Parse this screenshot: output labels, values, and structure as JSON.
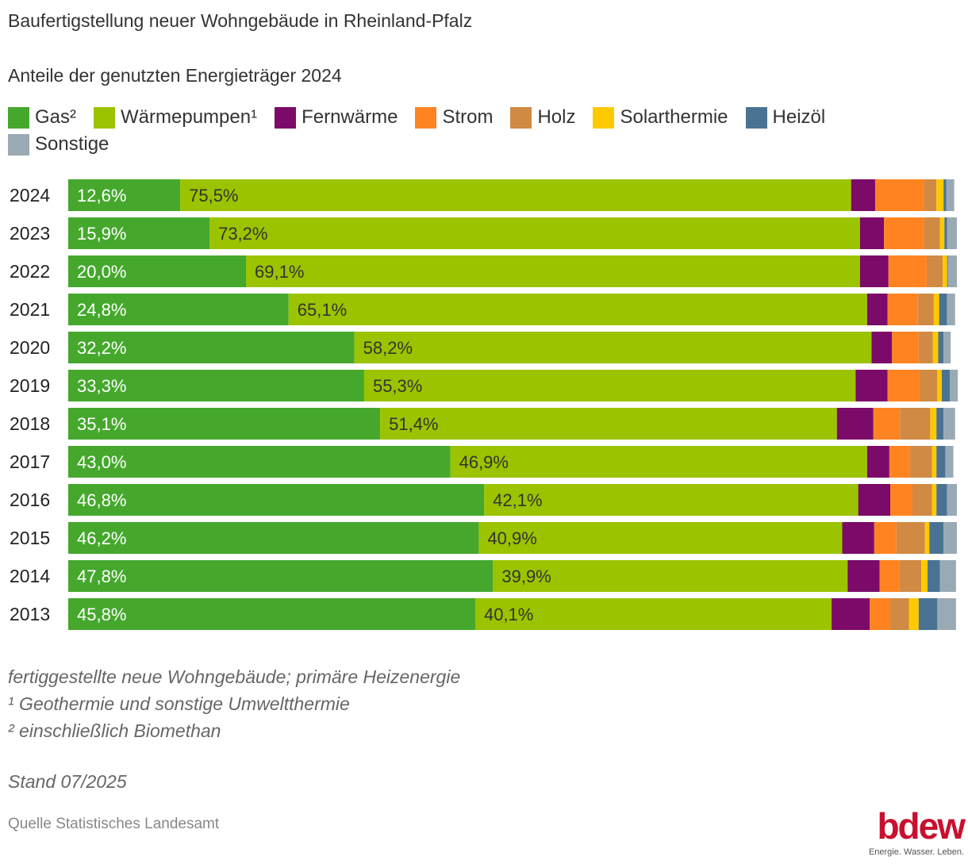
{
  "title": "Baufertigstellung neuer Wohngebäude in Rheinland-Pfalz",
  "subtitle": "Anteile der genutzten Energieträger 2024",
  "notes": [
    "fertiggestellte neue Wohngebäude; primäre Heizenergie",
    "¹ Geothermie und sonstige Umweltthermie",
    "² einschließlich Biomethan"
  ],
  "stand": "Stand 07/2025",
  "source": "Quelle Statistisches Landesamt",
  "logo": {
    "wordmark": "bdew",
    "claim": "Energie. Wasser. Leben."
  },
  "chart_data": {
    "type": "bar",
    "orientation": "horizontal",
    "stacked": true,
    "unit": "%",
    "xlim": [
      0,
      100
    ],
    "legend_position": "top",
    "categories": [
      "2024",
      "2023",
      "2022",
      "2021",
      "2020",
      "2019",
      "2018",
      "2017",
      "2016",
      "2015",
      "2014",
      "2013"
    ],
    "series": [
      {
        "name": "Gas²",
        "color": "#45a82d",
        "labeled": true,
        "values": [
          12.6,
          15.9,
          20.0,
          24.8,
          32.2,
          33.3,
          35.1,
          43.0,
          46.8,
          46.2,
          47.8,
          45.8
        ],
        "labels": [
          "12,6%",
          "15,9%",
          "20,0%",
          "24,8%",
          "32,2%",
          "33,3%",
          "35,1%",
          "43,0%",
          "46,8%",
          "46,2%",
          "47,8%",
          "45,8%"
        ]
      },
      {
        "name": "Wärmepumpen¹",
        "color": "#9bc300",
        "labeled": true,
        "values": [
          75.5,
          73.2,
          69.1,
          65.1,
          58.2,
          55.3,
          51.4,
          46.9,
          42.1,
          40.9,
          39.9,
          40.1
        ],
        "labels": [
          "75,5%",
          "73,2%",
          "69,1%",
          "65,1%",
          "58,2%",
          "55,3%",
          "51,4%",
          "46,9%",
          "42,1%",
          "40,9%",
          "39,9%",
          "40,1%"
        ]
      },
      {
        "name": "Fernwärme",
        "color": "#7b0a69",
        "values": [
          2.7,
          2.7,
          3.2,
          2.3,
          2.3,
          3.6,
          4.1,
          2.5,
          3.6,
          3.6,
          3.6,
          4.3
        ]
      },
      {
        "name": "Strom",
        "color": "#ff8421",
        "values": [
          5.5,
          4.5,
          4.3,
          3.4,
          3.0,
          3.6,
          3.0,
          2.3,
          2.5,
          2.5,
          2.2,
          2.3
        ]
      },
      {
        "name": "Holz",
        "color": "#d08a43",
        "values": [
          1.4,
          1.8,
          1.8,
          1.8,
          1.6,
          2.0,
          3.4,
          2.5,
          2.2,
          3.2,
          2.5,
          2.1
        ]
      },
      {
        "name": "Solarthermie",
        "color": "#ffc900",
        "values": [
          0.8,
          0.5,
          0.5,
          0.6,
          0.6,
          0.5,
          0.7,
          0.5,
          0.5,
          0.5,
          0.7,
          1.1
        ]
      },
      {
        "name": "Heizöl",
        "color": "#4a7393",
        "values": [
          0.3,
          0.3,
          0.1,
          0.9,
          0.6,
          0.9,
          0.8,
          1.0,
          1.2,
          1.6,
          1.4,
          2.1
        ]
      },
      {
        "name": "Sonstige",
        "color": "#9aaab5",
        "values": [
          0.9,
          1.1,
          1.0,
          0.9,
          0.8,
          0.9,
          1.3,
          0.9,
          1.1,
          1.5,
          1.8,
          2.1
        ]
      }
    ]
  }
}
